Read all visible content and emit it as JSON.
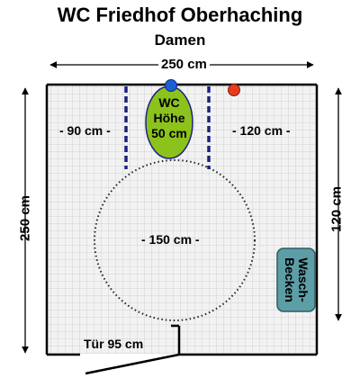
{
  "title": "WC Friedhof Oberhaching",
  "subtitle": "Damen",
  "plan": {
    "width_label": "250 cm",
    "height_left_label": "250 cm",
    "height_right_label": "120 cm",
    "left_clearance_label": "- 90 cm -",
    "right_clearance_label": "- 120 cm -",
    "turning_circle_label": "- 150 cm -",
    "door_label": "Tür 95 cm",
    "wc_label_line1": "WC",
    "wc_label_line2": "Höhe",
    "wc_label_line3": "50 cm",
    "basin_label_line1": "Wasch-",
    "basin_label_line2": "Becken"
  },
  "colors": {
    "wc": "#8cc21c",
    "basin": "#5d9ea6",
    "grab_bar": "#1a237e",
    "marker_blue": "#1e5fd6",
    "marker_red": "#e53b1f",
    "wall": "#000000"
  }
}
